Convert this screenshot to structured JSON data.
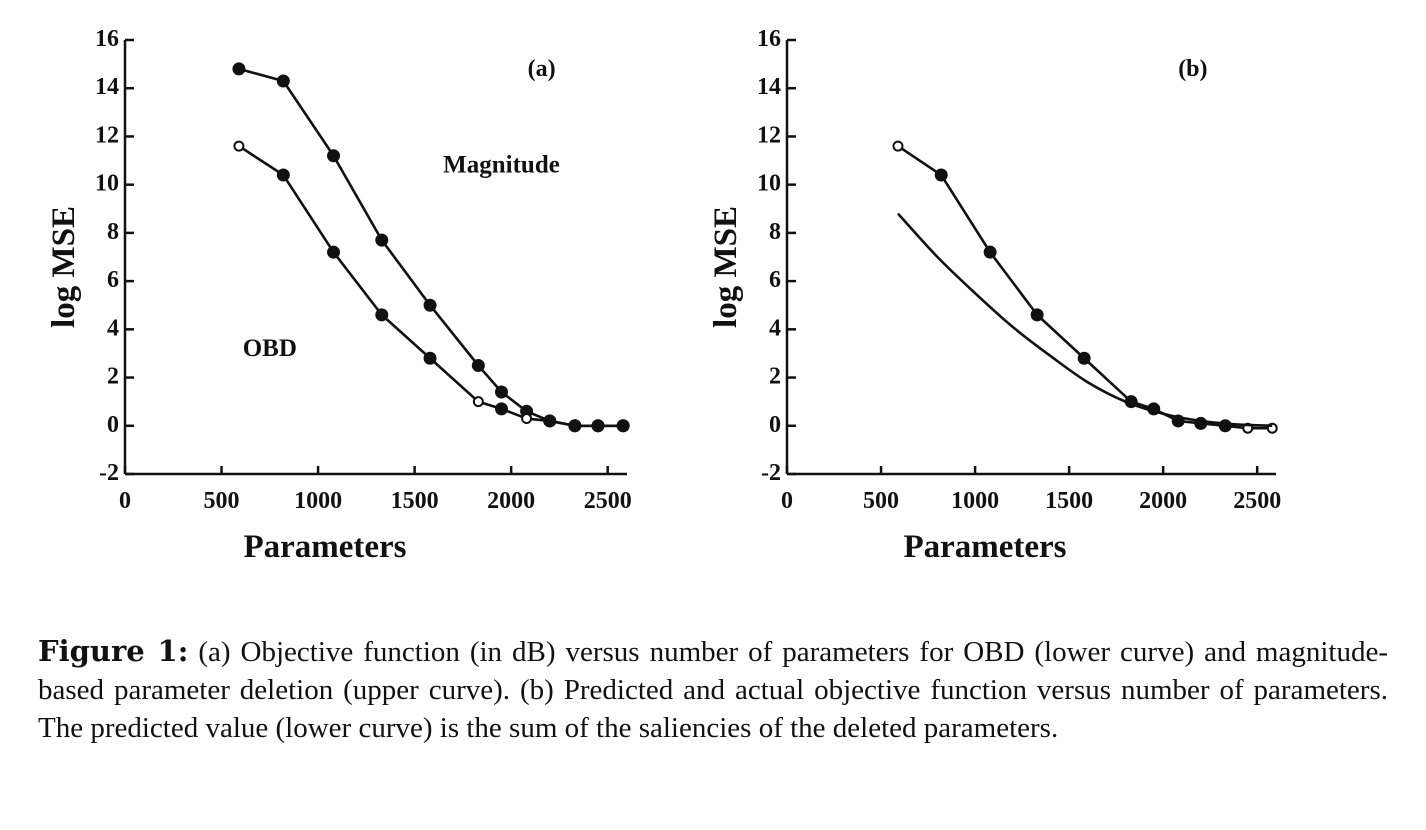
{
  "chart_data": [
    {
      "type": "line",
      "panel_label": "(a)",
      "title": "",
      "xlabel": "Parameters",
      "ylabel": "log MSE",
      "xlim": [
        0,
        2600
      ],
      "ylim": [
        -2,
        16
      ],
      "xticks": [
        0,
        500,
        1000,
        1500,
        2000,
        2500
      ],
      "yticks": [
        -2,
        0,
        2,
        4,
        6,
        8,
        10,
        12,
        14,
        16
      ],
      "grid": false,
      "annotations": [
        {
          "text": "Magnitude",
          "x": 1950,
          "y": 10.5
        },
        {
          "text": "OBD",
          "x": 750,
          "y": 2.9
        }
      ],
      "series": [
        {
          "name": "Magnitude",
          "marker": "filled-circle",
          "x": [
            590,
            820,
            1080,
            1330,
            1580,
            1830,
            1950,
            2080,
            2200,
            2330,
            2450,
            2580
          ],
          "y": [
            14.8,
            14.3,
            11.2,
            7.7,
            5.0,
            2.5,
            1.4,
            0.6,
            0.2,
            0.0,
            0.0,
            0.0
          ]
        },
        {
          "name": "OBD",
          "marker": "mixed-circle",
          "x": [
            590,
            820,
            1080,
            1330,
            1580,
            1830,
            1950,
            2080,
            2200,
            2330,
            2450,
            2580
          ],
          "y": [
            11.6,
            10.4,
            7.2,
            4.6,
            2.8,
            1.0,
            0.7,
            0.3,
            0.2,
            0.0,
            0.0,
            0.0
          ]
        }
      ]
    },
    {
      "type": "line",
      "panel_label": "(b)",
      "title": "",
      "xlabel": "Parameters",
      "ylabel": "log MSE",
      "xlim": [
        0,
        2600
      ],
      "ylim": [
        -2,
        16
      ],
      "xticks": [
        0,
        500,
        1000,
        1500,
        2000,
        2500
      ],
      "yticks": [
        -2,
        0,
        2,
        4,
        6,
        8,
        10,
        12,
        14,
        16
      ],
      "grid": false,
      "annotations": [],
      "series": [
        {
          "name": "Actual",
          "marker": "mixed-circle",
          "x": [
            590,
            820,
            1080,
            1330,
            1580,
            1830,
            1950,
            2080,
            2200,
            2330,
            2450,
            2580
          ],
          "y": [
            11.6,
            10.4,
            7.2,
            4.6,
            2.8,
            1.0,
            0.7,
            0.2,
            0.1,
            0.0,
            -0.1,
            -0.1
          ]
        },
        {
          "name": "Predicted",
          "marker": "none",
          "x": [
            590,
            800,
            1000,
            1200,
            1400,
            1600,
            1800,
            2000,
            2200,
            2400,
            2580
          ],
          "y": [
            8.8,
            7.0,
            5.5,
            4.1,
            2.9,
            1.8,
            1.0,
            0.5,
            0.2,
            0.05,
            0.0
          ]
        }
      ]
    }
  ],
  "caption": {
    "label": "Figure 1:",
    "text": " (a) Objective function (in dB) versus number of parameters for OBD (lower curve) and magnitude-based parameter deletion (upper curve). (b) Predicted and actual objective function versus number of parameters. The predicted value (lower curve) is the sum of the saliencies of the deleted parameters."
  }
}
